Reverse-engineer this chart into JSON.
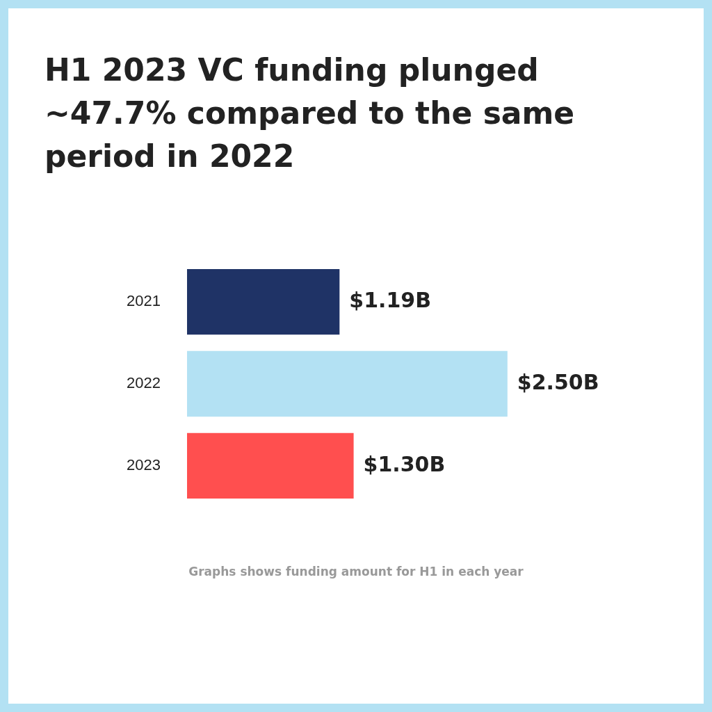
{
  "chart_data": {
    "type": "bar",
    "orientation": "horizontal",
    "title": "H1 2023 VC funding plunged ~47.7% compared to the same period in 2022",
    "categories": [
      "2021",
      "2022",
      "2023"
    ],
    "values": [
      1.19,
      2.5,
      1.3
    ],
    "colors": [
      "#1f3366",
      "#b3e1f3",
      "#ff4f4f"
    ],
    "value_labels": [
      "$1.19B",
      "$2.50B",
      "$1.30B"
    ],
    "annotations": [
      "Graphs shows funding amount for H1 in each year"
    ]
  }
}
